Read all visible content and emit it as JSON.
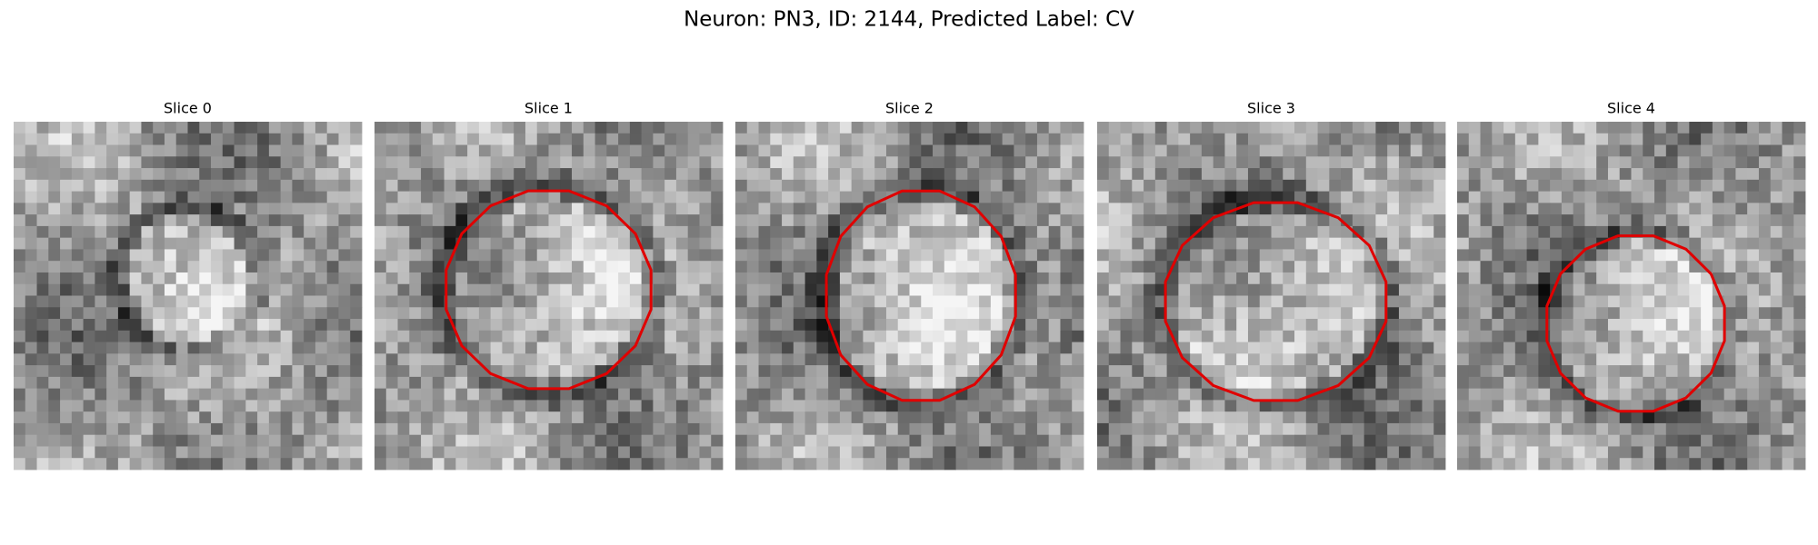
{
  "title": "Neuron: PN3, ID: 2144, Predicted Label: CV",
  "panels": [
    {
      "title": "Slice 0"
    },
    {
      "title": "Slice 1"
    },
    {
      "title": "Slice 2"
    },
    {
      "title": "Slice 3"
    },
    {
      "title": "Slice 4"
    }
  ]
}
